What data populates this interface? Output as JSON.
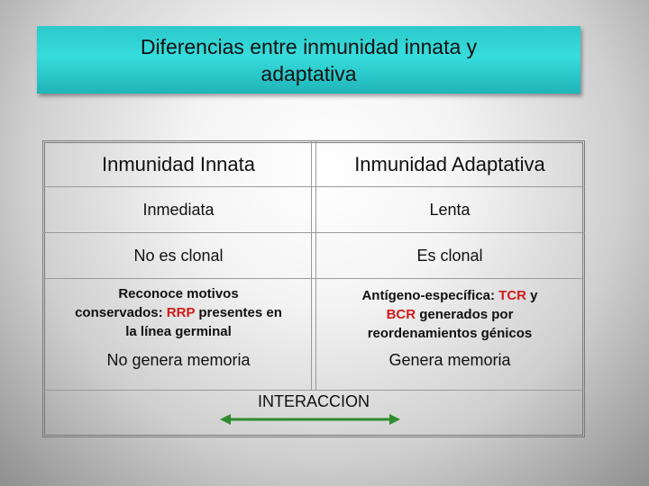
{
  "title": {
    "line1": "Diferencias entre inmunidad innata y",
    "line2": "adaptativa"
  },
  "table": {
    "headers": [
      "Inmunidad Innata",
      "Inmunidad Adaptativa"
    ],
    "rows": [
      [
        "Inmediata",
        "Lenta"
      ],
      [
        "No es clonal",
        "Es clonal"
      ]
    ],
    "row3_left": {
      "line1": "Reconoce motivos",
      "line2_a": "conservados: ",
      "line2_red": "RRP",
      "line2_b": " presentes en",
      "line3": "la línea germinal"
    },
    "row3_right": {
      "line1_a": "Antígeno-específica: ",
      "line1_red": "TCR",
      "line1_b": " y",
      "line2_red": "BCR",
      "line2_b": " generados por",
      "line3": "reordenamientos génicos"
    },
    "row4": [
      "No genera memoria",
      "Genera memoria"
    ]
  },
  "interaction_label": "INTERACCION",
  "colors": {
    "title_bg": "#2cc9cc",
    "highlight": "#d11a1a",
    "arrow": "#2e8b2e"
  }
}
